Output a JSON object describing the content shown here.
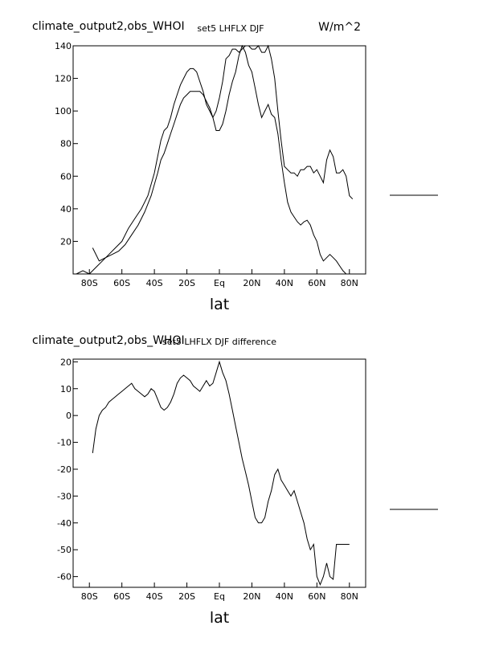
{
  "chart_data": [
    {
      "type": "line",
      "title_left": "climate_output2,obs_WHOI",
      "title": "set5 LHFLX DJF",
      "units": "W/m^2",
      "xlabel": "lat",
      "xlim": [
        -90,
        90
      ],
      "ylim": [
        0,
        140
      ],
      "xticks": [
        -80,
        -60,
        -40,
        -20,
        0,
        20,
        40,
        60,
        80
      ],
      "xtick_labels": [
        "80S",
        "60S",
        "40S",
        "20S",
        "Eq",
        "20N",
        "40N",
        "60N",
        "80N"
      ],
      "yticks": [
        20,
        40,
        60,
        80,
        100,
        120,
        140
      ],
      "ytick_labels": [
        "20",
        "40",
        "60",
        "80",
        "100",
        "120",
        "140"
      ],
      "series": [
        {
          "x": [
            -78,
            -74,
            -70,
            -66,
            -62,
            -58,
            -54,
            -50,
            -46,
            -42,
            -38,
            -36,
            -34,
            -32,
            -30,
            -28,
            -26,
            -24,
            -22,
            -20,
            -18,
            -16,
            -14,
            -12,
            -10,
            -8,
            -6,
            -4,
            -2,
            0,
            2,
            4,
            6,
            8,
            10,
            12,
            14,
            16,
            18,
            20,
            22,
            24,
            26,
            28,
            30,
            32,
            34,
            36,
            38,
            40,
            42,
            44,
            46,
            48,
            50,
            52,
            54,
            56,
            58,
            60,
            62,
            64,
            66,
            68,
            70,
            72,
            74,
            76,
            78,
            80
          ],
          "y": [
            16,
            8,
            10,
            12,
            14,
            18,
            24,
            30,
            38,
            48,
            62,
            70,
            74,
            80,
            86,
            92,
            98,
            104,
            108,
            110,
            112,
            112,
            112,
            112,
            110,
            106,
            102,
            96,
            88,
            88,
            92,
            100,
            110,
            118,
            124,
            134,
            140,
            136,
            128,
            124,
            114,
            104,
            96,
            100,
            104,
            98,
            96,
            86,
            70,
            56,
            44,
            38,
            35,
            32,
            30,
            32,
            33,
            30,
            24,
            20,
            12,
            8,
            10,
            12,
            10,
            8,
            5,
            2,
            0,
            0
          ]
        },
        {
          "x": [
            -88,
            -84,
            -80,
            -76,
            -72,
            -68,
            -64,
            -60,
            -56,
            -52,
            -48,
            -44,
            -40,
            -36,
            -34,
            -32,
            -30,
            -28,
            -26,
            -24,
            -22,
            -20,
            -18,
            -16,
            -14,
            -12,
            -10,
            -8,
            -6,
            -4,
            -2,
            0,
            2,
            4,
            6,
            8,
            10,
            12,
            14,
            16,
            18,
            20,
            22,
            24,
            26,
            28,
            30,
            32,
            34,
            36,
            38,
            40,
            42,
            44,
            46,
            48,
            50,
            52,
            54,
            56,
            58,
            60,
            62,
            64,
            66,
            68,
            70,
            72,
            74,
            76,
            78,
            80,
            82
          ],
          "y": [
            0,
            2,
            0,
            4,
            8,
            12,
            16,
            20,
            28,
            34,
            40,
            48,
            62,
            82,
            88,
            90,
            96,
            104,
            110,
            116,
            120,
            124,
            126,
            126,
            124,
            118,
            112,
            104,
            100,
            96,
            100,
            108,
            118,
            132,
            134,
            138,
            138,
            136,
            138,
            140,
            140,
            138,
            138,
            140,
            136,
            136,
            140,
            132,
            120,
            100,
            82,
            66,
            64,
            62,
            62,
            60,
            64,
            64,
            66,
            66,
            62,
            64,
            60,
            56,
            70,
            76,
            72,
            62,
            62,
            64,
            60,
            48,
            46
          ]
        }
      ]
    },
    {
      "type": "line",
      "title_left": "climate_output2,obs_WHOI",
      "title": "set5 LHFLX DJF difference",
      "units": "",
      "xlabel": "lat",
      "xlim": [
        -90,
        90
      ],
      "ylim": [
        -64,
        21
      ],
      "xticks": [
        -80,
        -60,
        -40,
        -20,
        0,
        20,
        40,
        60,
        80
      ],
      "xtick_labels": [
        "80S",
        "60S",
        "40S",
        "20S",
        "Eq",
        "20N",
        "40N",
        "60N",
        "80N"
      ],
      "yticks": [
        -60,
        -50,
        -40,
        -30,
        -20,
        -10,
        0,
        10,
        20
      ],
      "ytick_labels": [
        "-60",
        "-50",
        "-40",
        "-30",
        "-20",
        "-10",
        "0",
        "10",
        "20"
      ],
      "series": [
        {
          "x": [
            -78,
            -76,
            -74,
            -72,
            -70,
            -68,
            -66,
            -64,
            -62,
            -60,
            -58,
            -56,
            -54,
            -52,
            -50,
            -48,
            -46,
            -44,
            -42,
            -40,
            -38,
            -36,
            -34,
            -32,
            -30,
            -28,
            -26,
            -24,
            -22,
            -20,
            -18,
            -16,
            -14,
            -12,
            -10,
            -8,
            -6,
            -4,
            -2,
            0,
            2,
            4,
            6,
            8,
            10,
            12,
            14,
            16,
            18,
            20,
            22,
            24,
            26,
            28,
            30,
            32,
            34,
            36,
            38,
            40,
            42,
            44,
            46,
            48,
            50,
            52,
            54,
            56,
            58,
            60,
            62,
            64,
            66,
            68,
            70,
            72,
            74,
            76,
            78,
            80
          ],
          "y": [
            -14,
            -5,
            0,
            2,
            3,
            5,
            6,
            7,
            8,
            9,
            10,
            11,
            12,
            10,
            9,
            8,
            7,
            8,
            10,
            9,
            6,
            3,
            2,
            3,
            5,
            8,
            12,
            14,
            15,
            14,
            13,
            11,
            10,
            9,
            11,
            13,
            11,
            12,
            16,
            20,
            16,
            13,
            8,
            2,
            -4,
            -10,
            -16,
            -21,
            -26,
            -32,
            -38,
            -40,
            -40,
            -38,
            -32,
            -28,
            -22,
            -20,
            -24,
            -26,
            -28,
            -30,
            -28,
            -32,
            -36,
            -40,
            -46,
            -50,
            -48,
            -60,
            -63,
            -60,
            -55,
            -60,
            -61,
            -48,
            -48,
            -48,
            -48,
            -48
          ]
        }
      ]
    }
  ]
}
